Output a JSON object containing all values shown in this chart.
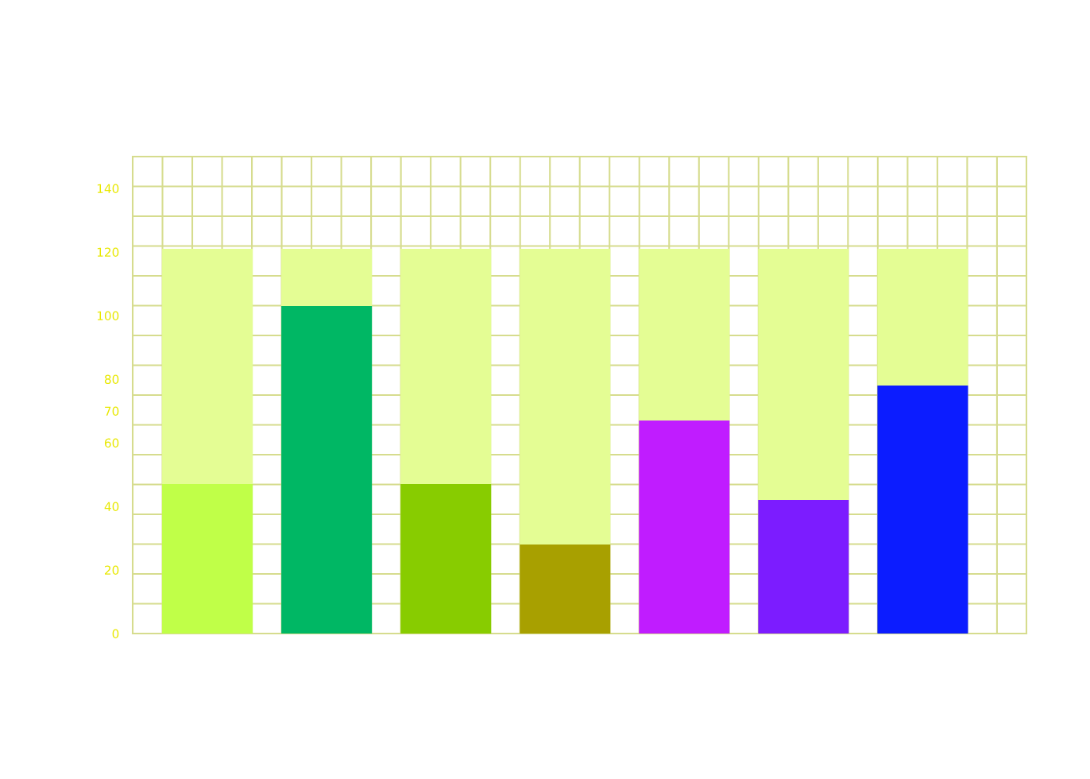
{
  "chart_data": {
    "type": "bar",
    "stacked": true,
    "categories": [
      null,
      null,
      null,
      null,
      null,
      null,
      null
    ],
    "series": [
      {
        "colors": [
          "#c0ff48",
          "#00b764",
          "#88cc00",
          "#a8a000",
          "#c01cff",
          "#7c1cff",
          "#0c1cff"
        ],
        "values": [
          47,
          103,
          47,
          28,
          67,
          42,
          78
        ]
      },
      {
        "color": "#e4fd94",
        "values": [
          74,
          18,
          74,
          93,
          54,
          79,
          43
        ]
      }
    ],
    "ylim": [
      0,
      150
    ],
    "yticks": [
      0,
      20,
      40,
      60,
      70,
      80,
      100,
      120,
      140,
      {
        "value": 9.375,
        "label": null
      },
      {
        "value": 18.75,
        "label": null
      },
      {
        "value": 28.125,
        "label": null
      },
      {
        "value": 37.5,
        "label": null
      },
      {
        "value": 46.875,
        "label": null
      },
      {
        "value": 56.25,
        "label": null
      },
      {
        "value": 65.625,
        "label": null
      },
      {
        "value": 75,
        "label": null
      },
      {
        "value": 84.375,
        "label": null
      },
      {
        "value": 93.75,
        "label": null
      },
      {
        "value": 103.125,
        "label": null
      },
      {
        "value": 112.5,
        "label": null
      },
      {
        "value": 121.875,
        "label": null
      },
      {
        "value": 131.25,
        "label": null
      },
      {
        "value": 140.625,
        "label": null
      }
    ],
    "tick_labels": "y",
    "grid": true
  }
}
